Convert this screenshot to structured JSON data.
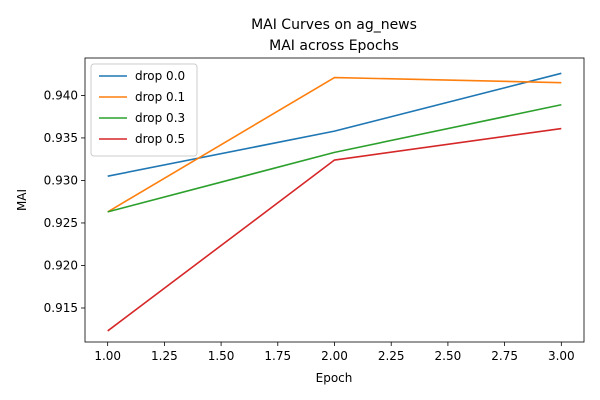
{
  "chart_data": {
    "type": "line",
    "title": "MAI Curves on ag_news",
    "subtitle": "MAI across Epochs",
    "xlabel": "Epoch",
    "ylabel": "MAI",
    "x": [
      1,
      2,
      3
    ],
    "xlim": [
      0.9,
      3.1
    ],
    "ylim": [
      0.911,
      0.9444
    ],
    "xticks": [
      "1.00",
      "1.25",
      "1.50",
      "1.75",
      "2.00",
      "2.25",
      "2.50",
      "2.75",
      "3.00"
    ],
    "yticks": [
      "0.915",
      "0.920",
      "0.925",
      "0.930",
      "0.935",
      "0.940"
    ],
    "grid": false,
    "legend_position": "upper-left",
    "series": [
      {
        "name": "drop 0.0",
        "color": "#1f77b4",
        "values": [
          0.9305,
          0.9358,
          0.9426
        ]
      },
      {
        "name": "drop 0.1",
        "color": "#ff7f0e",
        "values": [
          0.9263,
          0.9421,
          0.9415
        ]
      },
      {
        "name": "drop 0.3",
        "color": "#2ca02c",
        "values": [
          0.9263,
          0.9333,
          0.9389
        ]
      },
      {
        "name": "drop 0.5",
        "color": "#d62728",
        "values": [
          0.9123,
          0.9324,
          0.9361
        ]
      }
    ]
  }
}
